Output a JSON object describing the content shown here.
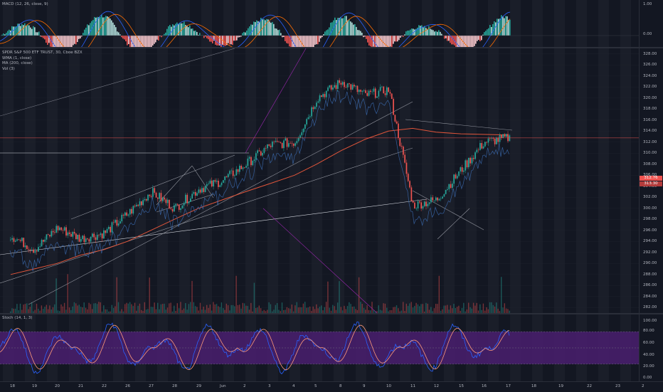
{
  "panes": {
    "macd": {
      "legend": "MACD (12, 26, close, 9)",
      "yticks": [
        "1.00",
        "0.00"
      ]
    },
    "main": {
      "legend": [
        "SPDR S&P 500 ETF TRUST, 30, Cboe BZX",
        "WMA (1, close)",
        "MA (200, close)",
        "Vol (3)"
      ],
      "yticks": [
        "328.00",
        "326.00",
        "324.00",
        "322.00",
        "320.00",
        "318.00",
        "316.00",
        "314.00",
        "312.00",
        "310.00",
        "308.00",
        "306.00",
        "304.00",
        "302.00",
        "300.00",
        "298.00",
        "296.00",
        "294.00",
        "292.00",
        "290.00",
        "288.00",
        "286.00",
        "284.00",
        "282.00"
      ],
      "price_labels": [
        "312.76",
        "313.30"
      ]
    },
    "stoch": {
      "legend": "Stoch (14, 1, 3)",
      "yticks": [
        "100.00",
        "80.00",
        "60.00",
        "40.00",
        "20.00",
        "0.00"
      ]
    }
  },
  "xaxis": {
    "ticks": [
      "18",
      "19",
      "20",
      "21",
      "22",
      "26",
      "27",
      "28",
      "29",
      "Jun",
      "2",
      "3",
      "4",
      "5",
      "8",
      "9",
      "10",
      "11",
      "12",
      "15",
      "16",
      "17",
      "18",
      "19",
      "22",
      "23",
      "2"
    ]
  },
  "colors": {
    "up": "#26a69a",
    "down": "#ef5350",
    "stoch_band": "#4a1f6e",
    "ma": "#e0553a",
    "wma": "#3d6fb8",
    "trend": "#9c27b0"
  },
  "chart_data": {
    "type": "candlestick",
    "title": "SPDR S&P 500 ETF TRUST, 30, Cboe BZX",
    "ylim": [
      281,
      329
    ],
    "series": [
      {
        "name": "SPDR S&P 500 ETF TRUST, 30, Cboe BZX",
        "x": [
          "May 18",
          "May 19",
          "May 20",
          "May 21",
          "May 22",
          "May 26",
          "May 27",
          "May 28",
          "May 29",
          "Jun 1",
          "Jun 2",
          "Jun 3",
          "Jun 4",
          "Jun 5",
          "Jun 8",
          "Jun 9",
          "Jun 10",
          "Jun 11",
          "Jun 12",
          "Jun 15",
          "Jun 16",
          "Jun 17"
        ],
        "close": [
          295,
          292.5,
          296.5,
          294.5,
          295.5,
          299,
          303,
          300,
          303.5,
          305,
          308,
          311.5,
          312,
          320,
          323,
          320.5,
          321.5,
          300.5,
          301.5,
          307,
          312,
          312.76
        ]
      },
      {
        "name": "MA (200, close)",
        "values": [
          288,
          289,
          290,
          291.5,
          292.5,
          294,
          296,
          298,
          300,
          301.5,
          303,
          304.5,
          306,
          308,
          310.5,
          312.5,
          314,
          314.5,
          313.8,
          313.5,
          313.4,
          313.3
        ]
      }
    ]
  }
}
